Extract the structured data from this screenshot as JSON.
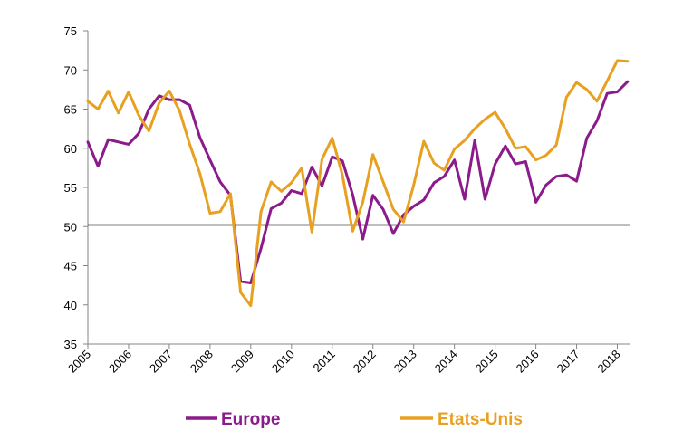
{
  "chart_data": {
    "type": "line",
    "title": "",
    "xlabel": "",
    "ylabel": "",
    "xlim": [
      2005,
      2018.3
    ],
    "ylim": [
      35,
      75
    ],
    "y_ticks": [
      35,
      40,
      45,
      50,
      55,
      60,
      65,
      70,
      75
    ],
    "x_ticks": [
      {
        "value": 2005,
        "label": "2005"
      },
      {
        "value": 2006,
        "label": "2006"
      },
      {
        "value": 2007,
        "label": "2007"
      },
      {
        "value": 2008,
        "label": "2008"
      },
      {
        "value": 2009,
        "label": "2009"
      },
      {
        "value": 2010,
        "label": "2010"
      },
      {
        "value": 2011,
        "label": "2011"
      },
      {
        "value": 2012,
        "label": "2012"
      },
      {
        "value": 2013,
        "label": "2013"
      },
      {
        "value": 2014,
        "label": "2014"
      },
      {
        "value": 2015,
        "label": "2015"
      },
      {
        "value": 2016,
        "label": "2016"
      },
      {
        "value": 2017,
        "label": "2017"
      },
      {
        "value": 2018,
        "label": "2018"
      }
    ],
    "grid": false,
    "legend_position": "bottom",
    "reference_line": {
      "y": 50.2,
      "color": "#000000"
    },
    "series": [
      {
        "name": "Europe",
        "color": "#8B1A8B",
        "x": [
          2005.0,
          2005.25,
          2005.5,
          2005.75,
          2006.0,
          2006.25,
          2006.5,
          2006.75,
          2007.0,
          2007.25,
          2007.5,
          2007.75,
          2008.0,
          2008.25,
          2008.5,
          2008.75,
          2009.0,
          2009.25,
          2009.5,
          2009.75,
          2010.0,
          2010.25,
          2010.5,
          2010.75,
          2011.0,
          2011.25,
          2011.5,
          2011.75,
          2012.0,
          2012.25,
          2012.5,
          2012.75,
          2013.0,
          2013.25,
          2013.5,
          2013.75,
          2014.0,
          2014.25,
          2014.5,
          2014.75,
          2015.0,
          2015.25,
          2015.5,
          2015.75,
          2016.0,
          2016.25,
          2016.5,
          2016.75,
          2017.0,
          2017.25,
          2017.5,
          2017.75,
          2018.0,
          2018.25
        ],
        "y": [
          60.8,
          57.7,
          61.1,
          60.8,
          60.5,
          61.9,
          65.0,
          66.7,
          66.2,
          66.2,
          65.5,
          61.4,
          58.5,
          55.7,
          54.0,
          43.0,
          42.8,
          47.2,
          52.3,
          53.0,
          54.6,
          54.2,
          57.6,
          55.2,
          58.9,
          58.4,
          54.1,
          48.4,
          54.0,
          52.2,
          49.1,
          51.5,
          52.6,
          53.4,
          55.6,
          56.4,
          58.5,
          53.5,
          61.0,
          53.5,
          58.0,
          60.3,
          58.0,
          58.3,
          53.1,
          55.3,
          56.4,
          56.6,
          55.8,
          61.3,
          63.5,
          67.0,
          67.2,
          68.5
        ]
      },
      {
        "name": "Etats-Unis",
        "color": "#E8A020",
        "x": [
          2005.0,
          2005.25,
          2005.5,
          2005.75,
          2006.0,
          2006.25,
          2006.5,
          2006.75,
          2007.0,
          2007.25,
          2007.5,
          2007.75,
          2008.0,
          2008.25,
          2008.5,
          2008.75,
          2009.0,
          2009.25,
          2009.5,
          2009.75,
          2010.0,
          2010.25,
          2010.5,
          2010.75,
          2011.0,
          2011.25,
          2011.5,
          2011.75,
          2012.0,
          2012.25,
          2012.5,
          2012.75,
          2013.0,
          2013.25,
          2013.5,
          2013.75,
          2014.0,
          2014.25,
          2014.5,
          2014.75,
          2015.0,
          2015.25,
          2015.5,
          2015.75,
          2016.0,
          2016.25,
          2016.5,
          2016.75,
          2017.0,
          2017.25,
          2017.5,
          2017.75,
          2018.0,
          2018.25
        ],
        "y": [
          66.0,
          65.0,
          67.3,
          64.5,
          67.2,
          64.2,
          62.2,
          65.8,
          67.3,
          64.8,
          60.5,
          56.8,
          51.7,
          51.9,
          54.2,
          41.6,
          39.9,
          51.9,
          55.7,
          54.5,
          55.6,
          57.5,
          49.3,
          58.6,
          61.3,
          56.6,
          49.4,
          53.1,
          59.2,
          55.7,
          52.2,
          50.6,
          55.3,
          60.9,
          58.1,
          57.2,
          59.9,
          61.0,
          62.5,
          63.7,
          64.6,
          62.5,
          60.0,
          60.2,
          58.5,
          59.1,
          60.4,
          66.5,
          68.4,
          67.5,
          66.0,
          68.6,
          71.2,
          71.1
        ]
      }
    ]
  }
}
